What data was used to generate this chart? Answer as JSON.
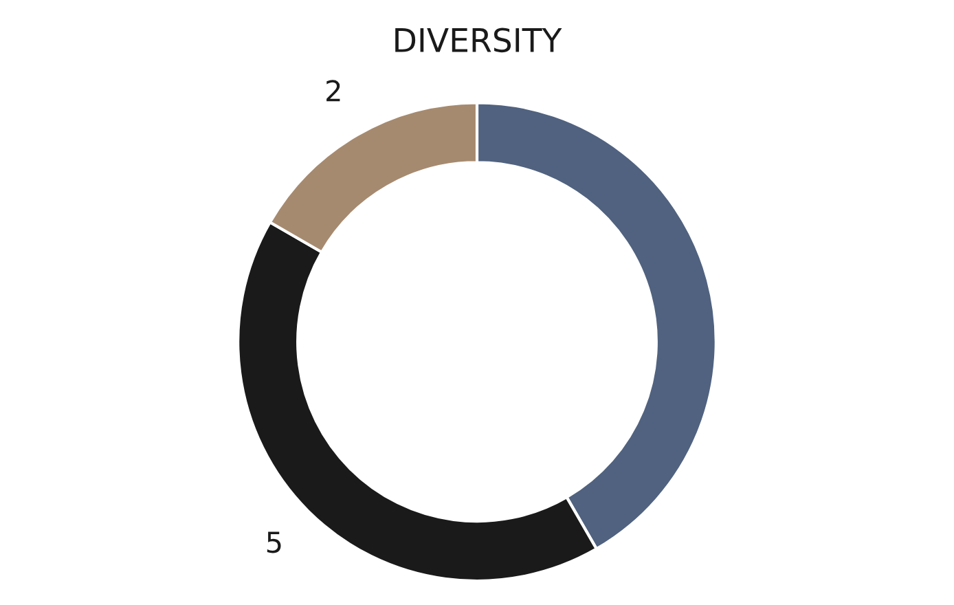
{
  "chart_data": {
    "type": "donut",
    "title": "DIVERSITY",
    "categories": [
      null,
      null,
      null
    ],
    "values": [
      5,
      5,
      2
    ],
    "colors": [
      "#50627f",
      "#1a1a1a",
      "#a68a6f"
    ],
    "value_labels": [
      null,
      "5",
      "2"
    ]
  }
}
